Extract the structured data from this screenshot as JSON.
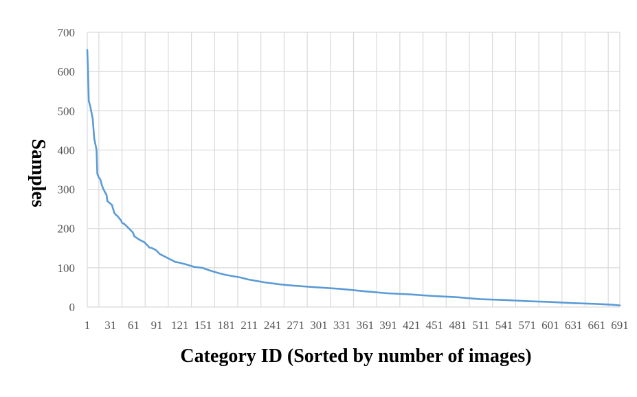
{
  "chart_data": {
    "type": "line",
    "xlabel": "Category ID (Sorted by number of images)",
    "ylabel": "Samples",
    "xlim": [
      1,
      691
    ],
    "ylim": [
      0,
      700
    ],
    "x_ticks": [
      "1",
      "31",
      "61",
      "91",
      "121",
      "151",
      "181",
      "211",
      "241",
      "271",
      "301",
      "331",
      "361",
      "391",
      "421",
      "451",
      "481",
      "511",
      "541",
      "571",
      "601",
      "631",
      "661",
      "691"
    ],
    "y_ticks": [
      "0",
      "100",
      "200",
      "300",
      "400",
      "500",
      "600",
      "700"
    ],
    "grid": true,
    "legend": "none",
    "series": [
      {
        "color": "#5b9bd5",
        "x": [
          1,
          2,
          3,
          5,
          8,
          10,
          11,
          13,
          14,
          16,
          18,
          20,
          22,
          26,
          27,
          30,
          33,
          36,
          38,
          40,
          45,
          46,
          50,
          55,
          60,
          62,
          68,
          75,
          80,
          81,
          85,
          90,
          95,
          100,
          105,
          110,
          115,
          120,
          130,
          140,
          150,
          160,
          170,
          180,
          200,
          210,
          230,
          250,
          270,
          300,
          330,
          360,
          390,
          420,
          450,
          480,
          510,
          540,
          570,
          600,
          630,
          660,
          680,
          691
        ],
        "y": [
          655,
          600,
          525,
          510,
          480,
          430,
          420,
          400,
          340,
          330,
          325,
          310,
          300,
          285,
          270,
          265,
          260,
          240,
          235,
          232,
          220,
          215,
          210,
          200,
          190,
          180,
          172,
          165,
          155,
          152,
          150,
          145,
          135,
          130,
          125,
          120,
          115,
          113,
          108,
          102,
          100,
          93,
          87,
          82,
          75,
          70,
          63,
          58,
          54,
          50,
          46,
          40,
          35,
          32,
          28,
          25,
          20,
          18,
          15,
          13,
          10,
          8,
          6,
          4
        ]
      }
    ]
  }
}
